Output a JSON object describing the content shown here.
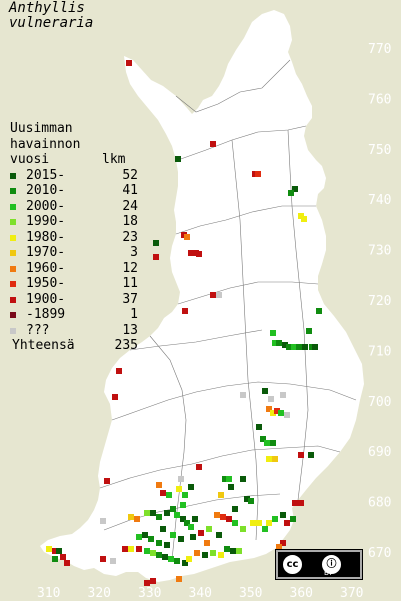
{
  "title_line1": "Anthyllis",
  "title_line2": "vulneraria",
  "legend": {
    "header_line1": "Uusimman",
    "header_line2": "havainnon",
    "header_col_left": "vuosi",
    "header_col_right": "lkm",
    "rows": [
      {
        "label": "2015-",
        "count": "52",
        "color": "#0a5a0a"
      },
      {
        "label": "2010-",
        "count": "41",
        "color": "#108c10"
      },
      {
        "label": "2000-",
        "count": "24",
        "color": "#22c022"
      },
      {
        "label": "1990-",
        "count": "18",
        "color": "#7ee02a"
      },
      {
        "label": "1980-",
        "count": "23",
        "color": "#f0ee10"
      },
      {
        "label": "1970-",
        "count": "3",
        "color": "#f0c810"
      },
      {
        "label": "1960-",
        "count": "12",
        "color": "#f07a10"
      },
      {
        "label": "1950-",
        "count": "11",
        "color": "#e02c10"
      },
      {
        "label": "1900-",
        "count": "37",
        "color": "#c01010"
      },
      {
        "label": "-1899",
        "count": "1",
        "color": "#7a0a1a"
      },
      {
        "label": "???",
        "count": "13",
        "color": "#c8c8c8"
      }
    ],
    "total_label": "Yhteensä",
    "total_count": "235"
  },
  "y_axis_labels": [
    "770",
    "760",
    "750",
    "740",
    "730",
    "720",
    "710",
    "700",
    "690",
    "680",
    "670"
  ],
  "x_axis_labels": [
    "310",
    "320",
    "330",
    "340",
    "350",
    "360",
    "370"
  ],
  "license_badge": {
    "cc": "cc",
    "by": "ⓘ",
    "by_text": "BY"
  }
}
